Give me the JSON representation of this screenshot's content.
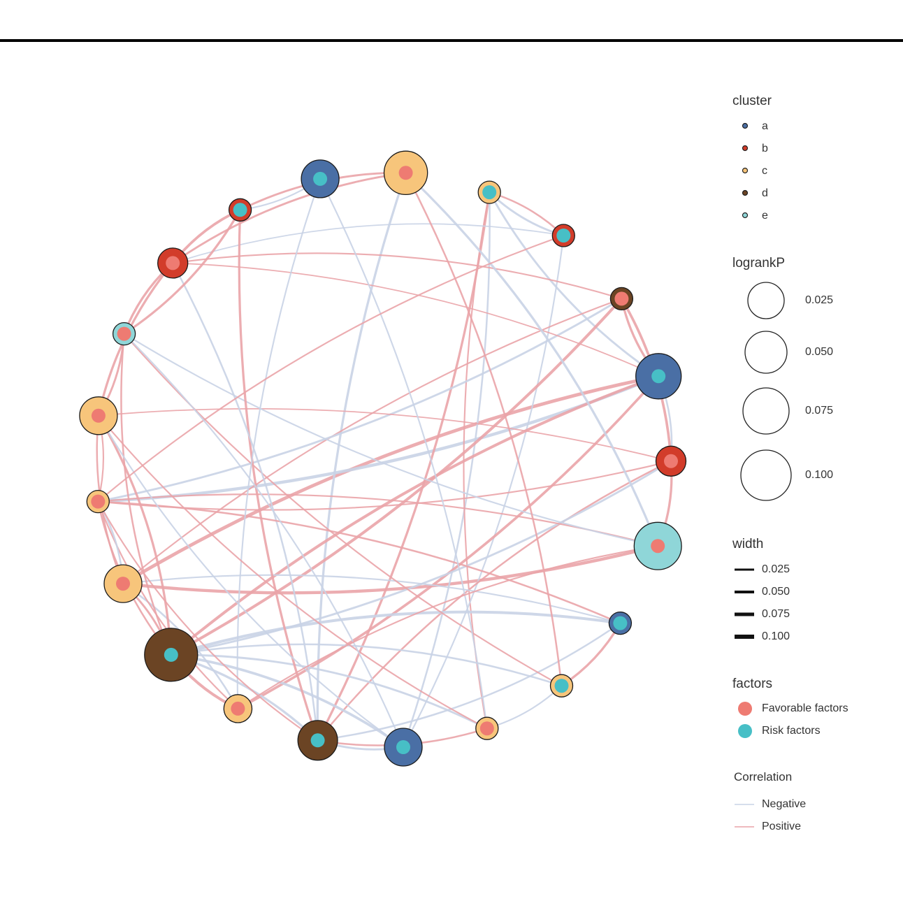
{
  "legend": {
    "cluster": {
      "title": "cluster",
      "items": [
        {
          "label": "a",
          "fill": "#4a6fa5"
        },
        {
          "label": "b",
          "fill": "#d23c2a"
        },
        {
          "label": "c",
          "fill": "#f7c57b"
        },
        {
          "label": "d",
          "fill": "#6b4424"
        },
        {
          "label": "e",
          "fill": "#8fd6d8"
        }
      ]
    },
    "logrankP": {
      "title": "logrankP",
      "items": [
        "0.025",
        "0.050",
        "0.075",
        "0.100"
      ]
    },
    "width": {
      "title": "width",
      "items": [
        "0.025",
        "0.050",
        "0.075",
        "0.100"
      ]
    },
    "factors": {
      "title": "factors",
      "items": [
        {
          "label": "Favorable factors",
          "color": "#ee7b72"
        },
        {
          "label": "Risk factors",
          "color": "#47bfc6"
        }
      ]
    },
    "correlation": {
      "title": "Correlation",
      "items": [
        {
          "label": "Negative",
          "color": "#c9d3e6"
        },
        {
          "label": "Positive",
          "color": "#eaa4a8"
        }
      ]
    }
  },
  "colors": {
    "negative_edge": "#c9d3e6",
    "positive_edge": "#eaa4a8",
    "favorable": "#ee7b72",
    "risk": "#47bfc6",
    "cluster_a": "#4a6fa5",
    "cluster_b": "#d23c2a",
    "cluster_c": "#f7c57b",
    "cluster_d": "#6b4424",
    "cluster_e": "#8fd6d8"
  },
  "network": {
    "nodes": [
      {
        "id": 0,
        "cluster": "a",
        "factor": "risk",
        "logrankP": 0.06
      },
      {
        "id": 1,
        "cluster": "c",
        "factor": "favorable",
        "logrankP": 0.075
      },
      {
        "id": 2,
        "cluster": "c",
        "factor": "risk",
        "logrankP": 0.02
      },
      {
        "id": 3,
        "cluster": "b",
        "factor": "risk",
        "logrankP": 0.02
      },
      {
        "id": 4,
        "cluster": "d",
        "factor": "favorable",
        "logrankP": 0.02
      },
      {
        "id": 5,
        "cluster": "a",
        "factor": "risk",
        "logrankP": 0.08
      },
      {
        "id": 6,
        "cluster": "b",
        "factor": "favorable",
        "logrankP": 0.04
      },
      {
        "id": 7,
        "cluster": "e",
        "factor": "favorable",
        "logrankP": 0.085
      },
      {
        "id": 8,
        "cluster": "a",
        "factor": "risk",
        "logrankP": 0.02
      },
      {
        "id": 9,
        "cluster": "c",
        "factor": "risk",
        "logrankP": 0.02
      },
      {
        "id": 10,
        "cluster": "c",
        "factor": "favorable",
        "logrankP": 0.02
      },
      {
        "id": 11,
        "cluster": "a",
        "factor": "risk",
        "logrankP": 0.06
      },
      {
        "id": 12,
        "cluster": "d",
        "factor": "risk",
        "logrankP": 0.065
      },
      {
        "id": 13,
        "cluster": "c",
        "factor": "favorable",
        "logrankP": 0.035
      },
      {
        "id": 14,
        "cluster": "d",
        "factor": "risk",
        "logrankP": 0.1
      },
      {
        "id": 15,
        "cluster": "c",
        "factor": "favorable",
        "logrankP": 0.06
      },
      {
        "id": 16,
        "cluster": "c",
        "factor": "favorable",
        "logrankP": 0.02
      },
      {
        "id": 17,
        "cluster": "c",
        "factor": "favorable",
        "logrankP": 0.06
      },
      {
        "id": 18,
        "cluster": "e",
        "factor": "favorable",
        "logrankP": 0.02
      },
      {
        "id": 19,
        "cluster": "b",
        "factor": "favorable",
        "logrankP": 0.04
      },
      {
        "id": 20,
        "cluster": "b",
        "factor": "risk",
        "logrankP": 0.02
      }
    ],
    "edges": [
      {
        "s": 15,
        "t": 5,
        "sign": "positive",
        "w": 0.1
      },
      {
        "s": 15,
        "t": 7,
        "sign": "positive",
        "w": 0.09
      },
      {
        "s": 5,
        "t": 16,
        "sign": "negative",
        "w": 0.09
      },
      {
        "s": 1,
        "t": 12,
        "sign": "negative",
        "w": 0.06
      },
      {
        "s": 2,
        "t": 12,
        "sign": "positive",
        "w": 0.06
      },
      {
        "s": 2,
        "t": 3,
        "sign": "negative",
        "w": 0.05
      },
      {
        "s": 2,
        "t": 3,
        "sign": "positive",
        "w": 0.04
      },
      {
        "s": 2,
        "t": 5,
        "sign": "negative",
        "w": 0.05
      },
      {
        "s": 2,
        "t": 11,
        "sign": "negative",
        "w": 0.04
      },
      {
        "s": 2,
        "t": 10,
        "sign": "positive",
        "w": 0.03
      },
      {
        "s": 3,
        "t": 11,
        "sign": "negative",
        "w": 0.03
      },
      {
        "s": 3,
        "t": 19,
        "sign": "negative",
        "w": 0.02
      },
      {
        "s": 4,
        "t": 6,
        "sign": "positive",
        "w": 0.07
      },
      {
        "s": 4,
        "t": 5,
        "sign": "positive",
        "w": 0.06
      },
      {
        "s": 4,
        "t": 14,
        "sign": "positive",
        "w": 0.08
      },
      {
        "s": 4,
        "t": 15,
        "sign": "positive",
        "w": 0.03
      },
      {
        "s": 4,
        "t": 16,
        "sign": "negative",
        "w": 0.05
      },
      {
        "s": 4,
        "t": 19,
        "sign": "positive",
        "w": 0.03
      },
      {
        "s": 5,
        "t": 6,
        "sign": "negative",
        "w": 0.04
      },
      {
        "s": 5,
        "t": 14,
        "sign": "positive",
        "w": 0.08
      },
      {
        "s": 5,
        "t": 13,
        "sign": "positive",
        "w": 0.07
      },
      {
        "s": 5,
        "t": 19,
        "sign": "positive",
        "w": 0.02
      },
      {
        "s": 6,
        "t": 7,
        "sign": "positive",
        "w": 0.06
      },
      {
        "s": 6,
        "t": 12,
        "sign": "positive",
        "w": 0.04
      },
      {
        "s": 6,
        "t": 16,
        "sign": "positive",
        "w": 0.03
      },
      {
        "s": 6,
        "t": 17,
        "sign": "positive",
        "w": 0.02
      },
      {
        "s": 6,
        "t": 14,
        "sign": "negative",
        "w": 0.05
      },
      {
        "s": 7,
        "t": 16,
        "sign": "positive",
        "w": 0.03
      },
      {
        "s": 7,
        "t": 18,
        "sign": "negative",
        "w": 0.03
      },
      {
        "s": 7,
        "t": 1,
        "sign": "negative",
        "w": 0.06
      },
      {
        "s": 8,
        "t": 9,
        "sign": "positive",
        "w": 0.06
      },
      {
        "s": 8,
        "t": 14,
        "sign": "negative",
        "w": 0.08
      },
      {
        "s": 8,
        "t": 12,
        "sign": "negative",
        "w": 0.04
      },
      {
        "s": 8,
        "t": 15,
        "sign": "negative",
        "w": 0.03
      },
      {
        "s": 9,
        "t": 10,
        "sign": "negative",
        "w": 0.03
      },
      {
        "s": 9,
        "t": 14,
        "sign": "negative",
        "w": 0.04
      },
      {
        "s": 9,
        "t": 18,
        "sign": "positive",
        "w": 0.03
      },
      {
        "s": 10,
        "t": 14,
        "sign": "negative",
        "w": 0.05
      },
      {
        "s": 10,
        "t": 12,
        "sign": "positive",
        "w": 0.04
      },
      {
        "s": 11,
        "t": 14,
        "sign": "negative",
        "w": 0.07
      },
      {
        "s": 11,
        "t": 12,
        "sign": "negative",
        "w": 0.05
      },
      {
        "s": 12,
        "t": 14,
        "sign": "negative",
        "w": 0.06
      },
      {
        "s": 12,
        "t": 20,
        "sign": "positive",
        "w": 0.06
      },
      {
        "s": 12,
        "t": 19,
        "sign": "negative",
        "w": 0.04
      },
      {
        "s": 13,
        "t": 14,
        "sign": "positive",
        "w": 0.08
      },
      {
        "s": 13,
        "t": 15,
        "sign": "negative",
        "w": 0.04
      },
      {
        "s": 13,
        "t": 16,
        "sign": "positive",
        "w": 0.03
      },
      {
        "s": 14,
        "t": 15,
        "sign": "positive",
        "w": 0.05
      },
      {
        "s": 14,
        "t": 16,
        "sign": "positive",
        "w": 0.04
      },
      {
        "s": 14,
        "t": 17,
        "sign": "positive",
        "w": 0.06
      },
      {
        "s": 14,
        "t": 18,
        "sign": "positive",
        "w": 0.04
      },
      {
        "s": 15,
        "t": 16,
        "sign": "negative",
        "w": 0.04
      },
      {
        "s": 15,
        "t": 17,
        "sign": "positive",
        "w": 0.04
      },
      {
        "s": 16,
        "t": 17,
        "sign": "positive",
        "w": 0.03
      },
      {
        "s": 16,
        "t": 8,
        "sign": "positive",
        "w": 0.04
      },
      {
        "s": 17,
        "t": 18,
        "sign": "positive",
        "w": 0.05
      },
      {
        "s": 17,
        "t": 19,
        "sign": "positive",
        "w": 0.06
      },
      {
        "s": 17,
        "t": 11,
        "sign": "negative",
        "w": 0.03
      },
      {
        "s": 18,
        "t": 19,
        "sign": "positive",
        "w": 0.06
      },
      {
        "s": 18,
        "t": 20,
        "sign": "positive",
        "w": 0.06
      },
      {
        "s": 19,
        "t": 20,
        "sign": "positive",
        "w": 0.07
      },
      {
        "s": 20,
        "t": 0,
        "sign": "negative",
        "w": 0.03
      },
      {
        "s": 20,
        "t": 1,
        "sign": "positive",
        "w": 0.05
      },
      {
        "s": 0,
        "t": 13,
        "sign": "negative",
        "w": 0.03
      },
      {
        "s": 0,
        "t": 10,
        "sign": "negative",
        "w": 0.03
      },
      {
        "s": 1,
        "t": 19,
        "sign": "positive",
        "w": 0.05
      },
      {
        "s": 1,
        "t": 9,
        "sign": "positive",
        "w": 0.04
      },
      {
        "s": 3,
        "t": 16,
        "sign": "positive",
        "w": 0.03
      },
      {
        "s": 10,
        "t": 17,
        "sign": "positive",
        "w": 0.03
      },
      {
        "s": 11,
        "t": 18,
        "sign": "negative",
        "w": 0.03
      },
      {
        "s": 12,
        "t": 16,
        "sign": "positive",
        "w": 0.03
      },
      {
        "s": 7,
        "t": 13,
        "sign": "positive",
        "w": 0.03
      }
    ]
  }
}
